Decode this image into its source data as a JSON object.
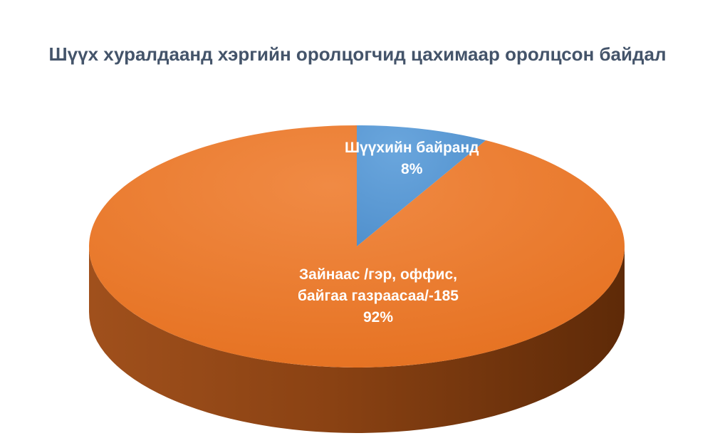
{
  "chart_data": {
    "type": "pie",
    "title": "Шүүх хуралдаанд хэргийн оролцогчид цахимаар оролцсон байдал",
    "slices": [
      {
        "label": "Шүүхийн байранд",
        "percent_label": "8%",
        "value": 8,
        "color": "#5b9bd5"
      },
      {
        "label": "Зайнаас /гэр, оффис, байгаа газраасаа/-185",
        "label_lines": [
          "Зайнаас /гэр, оффис,",
          "байгаа газраасаа/-185"
        ],
        "percent_label": "92%",
        "value": 92,
        "color": "#ed7d31"
      }
    ],
    "style": "3d-pie",
    "legend": "none"
  }
}
